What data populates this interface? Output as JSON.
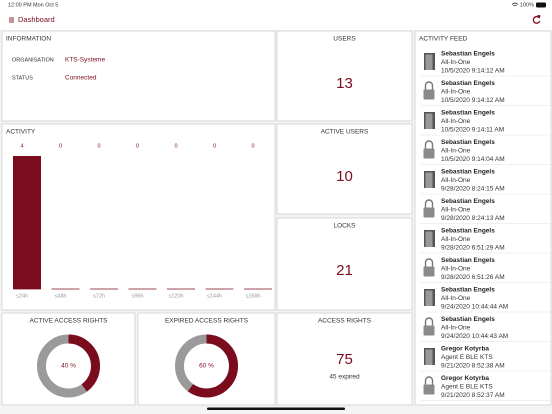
{
  "status_bar": {
    "time": "12:00 PM",
    "date": "Mon Oct 5",
    "battery": "100%"
  },
  "header": {
    "title": "Dashboard"
  },
  "information": {
    "title": "INFORMATION",
    "rows": [
      {
        "label": "ORGANISATION",
        "value": "KTS-Systeme"
      },
      {
        "label": "STATUS",
        "value": "Connected"
      }
    ]
  },
  "users": {
    "title": "USERS",
    "value": 13
  },
  "active_users": {
    "title": "ACTIVE USERS",
    "value": 10
  },
  "locks": {
    "title": "LOCKS",
    "value": 21
  },
  "access_rights": {
    "title": "ACCESS RIGHTS",
    "value": 75,
    "note": "45 expired"
  },
  "activity": {
    "title": "ACTIVITY",
    "categories": [
      "≤24h",
      "≤48h",
      "≤72h",
      "≤96h",
      "≤120h",
      "≤144h",
      "≤168h"
    ],
    "values": [
      4,
      0,
      0,
      0,
      0,
      0,
      0
    ],
    "color": "#7b0c1e"
  },
  "active_access_rights": {
    "title": "ACTIVE ACCESS RIGHTS",
    "value": 40,
    "value_label": "40 %",
    "color": "#7b0c1e"
  },
  "expired_access_rights": {
    "title": "EXPIRED ACCESS RIGHTS",
    "value": 60,
    "value_label": "60 %",
    "color": "#7b0c1e"
  },
  "activity_feed": {
    "title": "ACTIVITY FEED",
    "items": [
      {
        "name": "Sebastian Engels",
        "device": "All-In-One",
        "time": "10/5/2020 9:14:12 AM",
        "icon": "door"
      },
      {
        "name": "Sebastian Engels",
        "device": "All-In-One",
        "time": "10/5/2020 9:14:12 AM",
        "icon": "lock"
      },
      {
        "name": "Sebastian Engels",
        "device": "All-In-One",
        "time": "10/5/2020 9:14:11 AM",
        "icon": "door"
      },
      {
        "name": "Sebastian Engels",
        "device": "All-In-One",
        "time": "10/5/2020 9:14:04 AM",
        "icon": "lock"
      },
      {
        "name": "Sebastian Engels",
        "device": "All-In-One",
        "time": "9/28/2020 8:24:15 AM",
        "icon": "door"
      },
      {
        "name": "Sebastian Engels",
        "device": "All-In-One",
        "time": "9/28/2020 8:24:13 AM",
        "icon": "lock"
      },
      {
        "name": "Sebastian Engels",
        "device": "All-In-One",
        "time": "9/28/2020 6:51:29 AM",
        "icon": "door"
      },
      {
        "name": "Sebastian Engels",
        "device": "All-In-One",
        "time": "9/28/2020 6:51:26 AM",
        "icon": "lock"
      },
      {
        "name": "Sebastian Engels",
        "device": "All-In-One",
        "time": "9/24/2020 10:44:44 AM",
        "icon": "door"
      },
      {
        "name": "Sebastian Engels",
        "device": "All-In-One",
        "time": "9/24/2020 10:44:43 AM",
        "icon": "lock"
      },
      {
        "name": "Gregor Kotyrba",
        "device": "Agent E BLE KTS",
        "time": "9/21/2020 8:52:38 AM",
        "icon": "door"
      },
      {
        "name": "Gregor Kotyrba",
        "device": "Agent E BLE KTS",
        "time": "9/21/2020 8:52:37 AM",
        "icon": "lock"
      }
    ]
  }
}
